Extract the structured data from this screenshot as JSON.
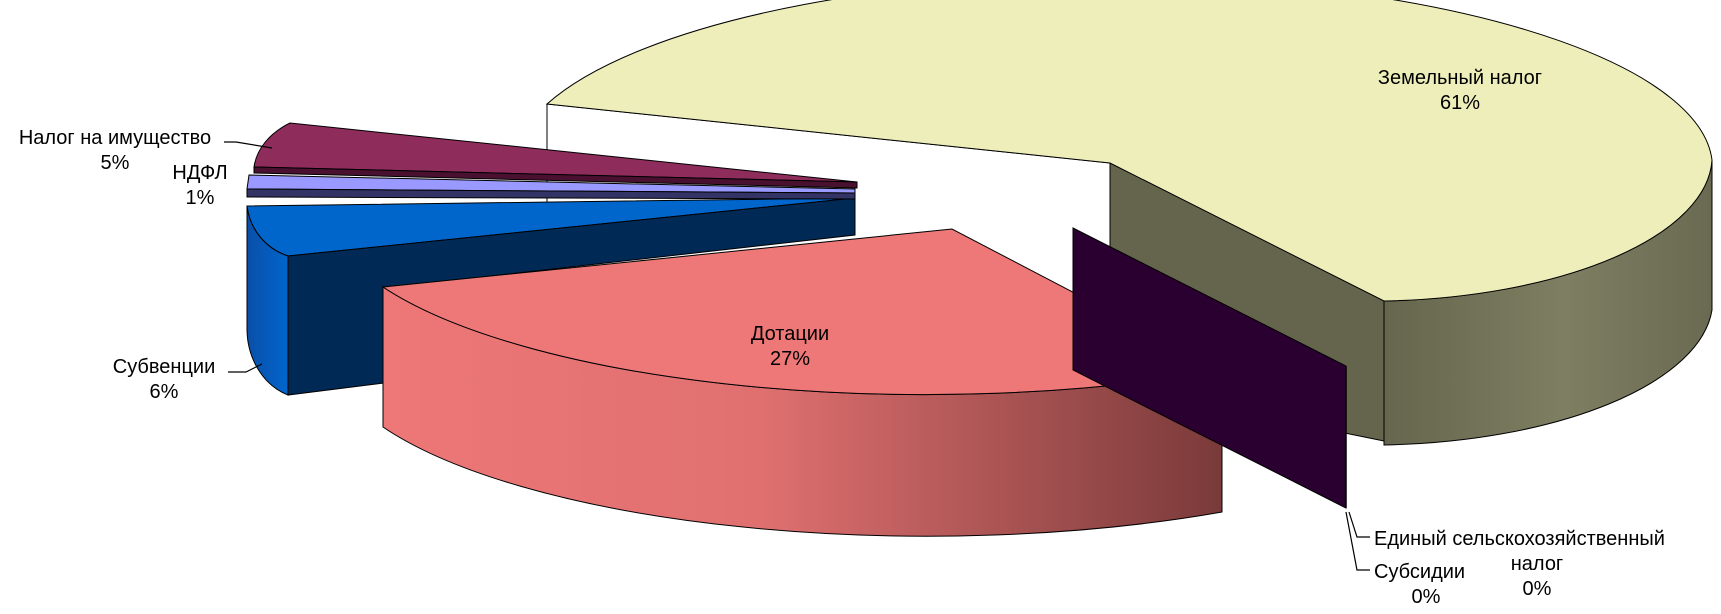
{
  "chart_data": {
    "type": "pie",
    "style": "3d-exploded",
    "title": "",
    "legend": "none",
    "slices": [
      {
        "key": "land",
        "label": "Земельный налог",
        "label_lines": [
          "Земельный налог"
        ],
        "value": 61,
        "pct": "61%",
        "color": "#EEEEBB"
      },
      {
        "key": "esxn",
        "label": "Единый сельскохозяйственный налог",
        "label_lines": [
          "Единый сельскохозяйственный",
          "налог"
        ],
        "value": 0,
        "pct": "0%",
        "color": "#3A0F3A"
      },
      {
        "key": "subsidy",
        "label": "Субсидии",
        "label_lines": [
          "Субсидии"
        ],
        "value": 0,
        "pct": "0%",
        "color": "#2A0030"
      },
      {
        "key": "dotation",
        "label": "Дотации",
        "label_lines": [
          "Дотации"
        ],
        "value": 27,
        "pct": "27%",
        "color": "#EE7777"
      },
      {
        "key": "subvent",
        "label": "Субвенции",
        "label_lines": [
          "Субвенции"
        ],
        "value": 6,
        "pct": "6%",
        "color": "#0066CC"
      },
      {
        "key": "ndfl",
        "label": "НДФЛ",
        "label_lines": [
          "НДФЛ"
        ],
        "value": 1,
        "pct": "1%",
        "color": "#9999FF"
      },
      {
        "key": "property",
        "label": "Налог на имущество",
        "label_lines": [
          "Налог на имущество"
        ],
        "value": 5,
        "pct": "5%",
        "color": "#993366"
      }
    ]
  }
}
